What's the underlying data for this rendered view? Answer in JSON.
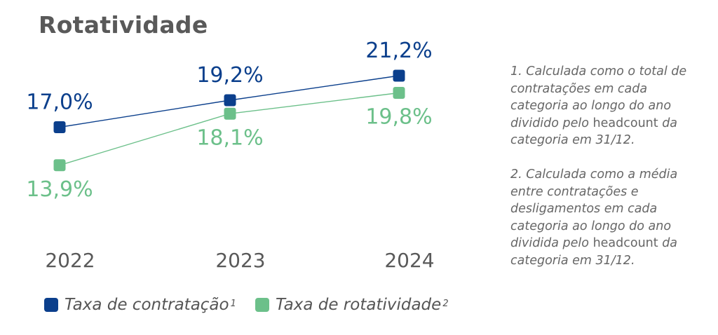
{
  "title": "Rotatividade",
  "colors": {
    "series1": "#0b3f8c",
    "series2": "#6cc08a",
    "axis_text": "#595959",
    "notes_text": "#666666"
  },
  "chart_data": {
    "type": "line",
    "title": "Rotatividade",
    "categories": [
      "2022",
      "2023",
      "2024"
    ],
    "series": [
      {
        "name": "Taxa de contratação",
        "values": [
          17.0,
          19.2,
          21.2
        ],
        "labels": [
          "17,0%",
          "19,2%",
          "21,2%"
        ],
        "color": "#0b3f8c",
        "label_position": "above"
      },
      {
        "name": "Taxa de rotatividade",
        "values": [
          13.9,
          18.1,
          19.8
        ],
        "labels": [
          "13,9%",
          "18,1%",
          "19,8%"
        ],
        "color": "#6cc08a",
        "label_position": "below"
      }
    ],
    "ylim": [
      10,
      22
    ],
    "grid": false,
    "legend": "bottom-left"
  },
  "legend": {
    "item1": {
      "label": "Taxa de contratação",
      "sup": "1"
    },
    "item2": {
      "label": "Taxa de rotatividade",
      "sup": "2"
    }
  },
  "notes": {
    "note1": {
      "before": "1. Calculada como o total de contratações em cada categoria ao longo do ano dividido pelo ",
      "term": "headcount",
      "after": " da categoria em 31/12."
    },
    "note2": {
      "before": "2. Calculada como a média entre contratações e desligamentos em cada categoria ao longo do ano dividida pelo ",
      "term": "headcount",
      "after": " da categoria em 31/12."
    }
  }
}
